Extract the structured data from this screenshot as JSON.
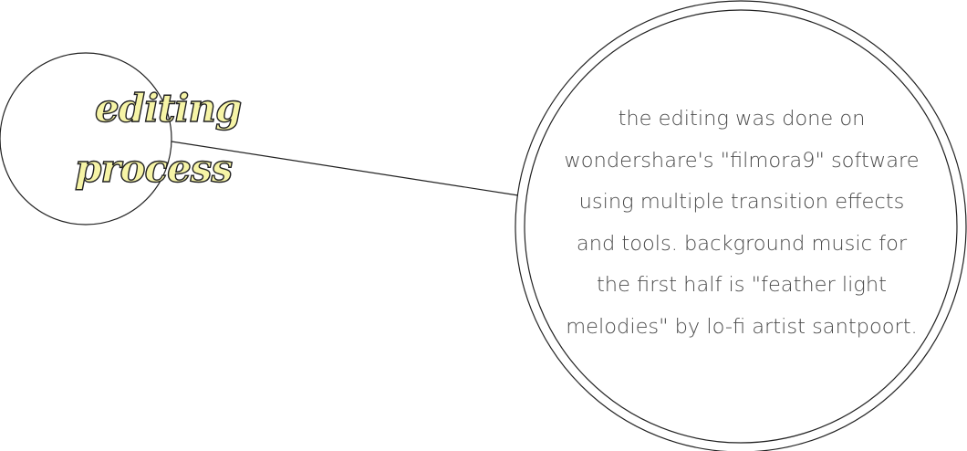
{
  "title": {
    "line1": "editing",
    "line2": "process"
  },
  "description": {
    "lines": [
      "the editing was done on",
      "wondershare's \"filmora9\" software",
      "using multiple transition effects",
      "and tools. background music for",
      "the first half is \"feather light",
      "melodies\" by lo-fi artist santpoort."
    ]
  },
  "colors": {
    "title_fill": "#f6f4a6",
    "outline": "#222222",
    "text": "#4a4a4a"
  }
}
